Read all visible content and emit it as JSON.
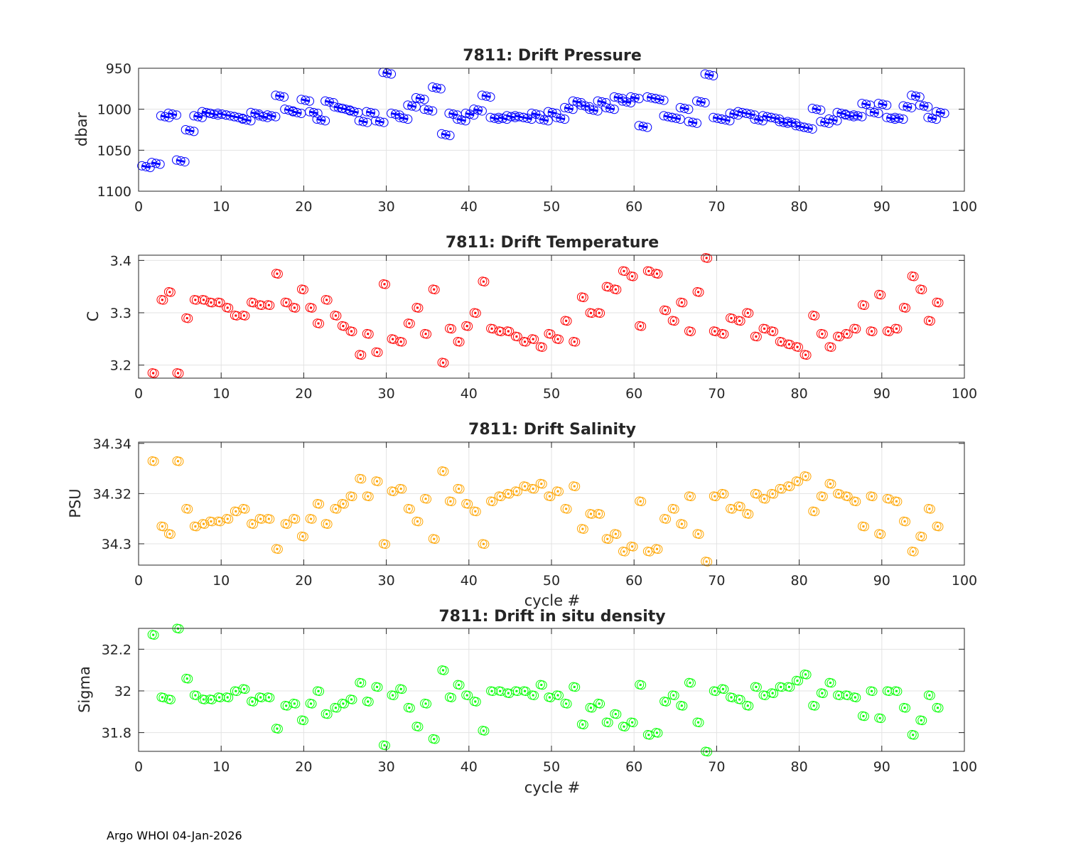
{
  "footer": "Argo WHOI 04-Jan-2026",
  "chart_data": [
    {
      "type": "scatter",
      "title": "7811: Drift Pressure",
      "xlabel": "",
      "ylabel": "dbar",
      "xlim": [
        0,
        100
      ],
      "ylim": [
        950,
        1100
      ],
      "y_reversed": true,
      "xticks": [
        0,
        10,
        20,
        30,
        40,
        50,
        60,
        70,
        80,
        90,
        100
      ],
      "yticks": [
        950,
        1000,
        1050,
        1100
      ],
      "grid": true,
      "color": "#0000ff",
      "marker": "circle",
      "pattern": [
        0.2,
        1.2,
        2.2
      ],
      "x": [
        0.3,
        1.5,
        2.6,
        3.5,
        4.5,
        5.6,
        6.6,
        7.6,
        8.5,
        9.5,
        10.5,
        11.5,
        12.5,
        13.5,
        14.5,
        15.5,
        16.5,
        17.6,
        18.6,
        19.6,
        20.6,
        21.5,
        22.5,
        23.6,
        24.5,
        25.5,
        26.6,
        27.5,
        28.6,
        29.5,
        30.5,
        31.5,
        32.5,
        33.5,
        34.5,
        35.5,
        36.6,
        37.5,
        38.5,
        39.5,
        40.5,
        41.5,
        42.5,
        43.5,
        44.5,
        45.5,
        46.5,
        47.5,
        48.5,
        49.5,
        50.5,
        51.5,
        52.5,
        53.5,
        54.5,
        55.5,
        56.5,
        57.5,
        58.5,
        59.5,
        60.5,
        61.5,
        62.5,
        63.5,
        64.5,
        65.5,
        66.5,
        67.5,
        68.5,
        69.5,
        70.5,
        71.5,
        72.5,
        73.5,
        74.5,
        75.5,
        76.5,
        77.5,
        78.5,
        79.5,
        80.5,
        81.5,
        82.5,
        83.5,
        84.5,
        85.5,
        86.5,
        87.5,
        88.5,
        89.5,
        90.5,
        91.5,
        92.5,
        93.5,
        94.5,
        95.5,
        96.5
      ],
      "y": [
        1069,
        1065,
        1008,
        1005,
        1062,
        1025,
        1008,
        1003,
        1005,
        1005,
        1007,
        1009,
        1012,
        1004,
        1008,
        1007,
        983,
        1000,
        1003,
        988,
        1003,
        1012,
        990,
        997,
        999,
        1002,
        1014,
        1003,
        1014,
        955,
        1005,
        1010,
        995,
        986,
        1000,
        973,
        1030,
        1005,
        1012,
        1005,
        1000,
        983,
        1010,
        1010,
        1008,
        1008,
        1010,
        1005,
        1012,
        1003,
        1010,
        998,
        990,
        995,
        1000,
        990,
        998,
        985,
        990,
        985,
        1020,
        985,
        987,
        1008,
        1010,
        998,
        1015,
        990,
        957,
        1010,
        1012,
        1005,
        1003,
        1005,
        1012,
        1008,
        1010,
        1015,
        1015,
        1020,
        1022,
        999,
        1015,
        1012,
        1004,
        1007,
        1007,
        993,
        1003,
        993,
        1010,
        1010,
        996,
        983,
        995,
        1010,
        1003
      ],
      "markers": []
    },
    {
      "type": "scatter",
      "title": "7811: Drift Temperature",
      "xlabel": "",
      "ylabel": "C",
      "xlim": [
        0,
        100
      ],
      "ylim": [
        3.175,
        3.41
      ],
      "y_reversed": false,
      "xticks": [
        0,
        10,
        20,
        30,
        40,
        50,
        60,
        70,
        80,
        90,
        100
      ],
      "yticks": [
        3.2,
        3.3,
        3.4
      ],
      "ytick_labels": [
        "3.2",
        "3.3",
        "3.4"
      ],
      "grid": true,
      "color": "#ff0000",
      "marker": "circle",
      "pattern": [
        0.3,
        0.8
      ],
      "x": [
        1.5,
        2.6,
        3.5,
        4.5,
        5.6,
        6.6,
        7.6,
        8.5,
        9.5,
        10.5,
        11.5,
        12.5,
        13.5,
        14.5,
        15.5,
        16.5,
        17.6,
        18.6,
        19.6,
        20.6,
        21.5,
        22.5,
        23.6,
        24.5,
        25.5,
        26.6,
        27.5,
        28.6,
        29.5,
        30.5,
        31.5,
        32.5,
        33.5,
        34.5,
        35.5,
        36.6,
        37.5,
        38.5,
        39.5,
        40.5,
        41.5,
        42.5,
        43.5,
        44.5,
        45.5,
        46.5,
        47.5,
        48.5,
        49.5,
        50.5,
        51.5,
        52.5,
        53.5,
        54.5,
        55.5,
        56.5,
        57.5,
        58.5,
        59.5,
        60.5,
        61.5,
        62.5,
        63.5,
        64.5,
        65.5,
        66.5,
        67.5,
        68.5,
        69.5,
        70.5,
        71.5,
        72.5,
        73.5,
        74.5,
        75.5,
        76.5,
        77.5,
        78.5,
        79.5,
        80.5,
        81.5,
        82.5,
        83.5,
        84.5,
        85.5,
        86.5,
        87.5,
        88.5,
        89.5,
        90.5,
        91.5,
        92.5,
        93.5,
        94.5,
        95.5,
        96.5
      ],
      "y": [
        3.185,
        3.325,
        3.34,
        3.185,
        3.29,
        3.325,
        3.325,
        3.32,
        3.32,
        3.31,
        3.295,
        3.295,
        3.32,
        3.315,
        3.315,
        3.375,
        3.32,
        3.31,
        3.345,
        3.31,
        3.28,
        3.325,
        3.295,
        3.275,
        3.265,
        3.22,
        3.26,
        3.225,
        3.355,
        3.25,
        3.245,
        3.28,
        3.31,
        3.26,
        3.345,
        3.205,
        3.27,
        3.245,
        3.275,
        3.3,
        3.36,
        3.27,
        3.265,
        3.265,
        3.255,
        3.245,
        3.25,
        3.235,
        3.26,
        3.25,
        3.285,
        3.245,
        3.33,
        3.3,
        3.3,
        3.35,
        3.345,
        3.38,
        3.37,
        3.275,
        3.38,
        3.375,
        3.305,
        3.285,
        3.32,
        3.265,
        3.34,
        3.405,
        3.265,
        3.26,
        3.29,
        3.285,
        3.3,
        3.255,
        3.27,
        3.265,
        3.245,
        3.24,
        3.235,
        3.22,
        3.295,
        3.26,
        3.235,
        3.255,
        3.26,
        3.27,
        3.315,
        3.265,
        3.335,
        3.265,
        3.27,
        3.31,
        3.37,
        3.345,
        3.285,
        3.32
      ],
      "markers": []
    },
    {
      "type": "scatter",
      "title": "7811: Drift Salinity",
      "xlabel": "cycle #",
      "ylabel": "PSU",
      "xlim": [
        0,
        100
      ],
      "ylim": [
        34.2915,
        34.3405
      ],
      "y_reversed": false,
      "xticks": [
        0,
        10,
        20,
        30,
        40,
        50,
        60,
        70,
        80,
        90,
        100
      ],
      "yticks": [
        34.3,
        34.32,
        34.34
      ],
      "ytick_labels": [
        "34.3",
        "34.32",
        "34.34"
      ],
      "grid": true,
      "color": "#ffa500",
      "marker": "circle",
      "pattern": [
        0.3,
        0.8
      ],
      "x": [
        1.5,
        2.6,
        3.5,
        4.5,
        5.6,
        6.6,
        7.6,
        8.5,
        9.5,
        10.5,
        11.5,
        12.5,
        13.5,
        14.5,
        15.5,
        16.5,
        17.6,
        18.6,
        19.6,
        20.6,
        21.5,
        22.5,
        23.6,
        24.5,
        25.5,
        26.6,
        27.5,
        28.6,
        29.5,
        30.5,
        31.5,
        32.5,
        33.5,
        34.5,
        35.5,
        36.6,
        37.5,
        38.5,
        39.5,
        40.5,
        41.5,
        42.5,
        43.5,
        44.5,
        45.5,
        46.5,
        47.5,
        48.5,
        49.5,
        50.5,
        51.5,
        52.5,
        53.5,
        54.5,
        55.5,
        56.5,
        57.5,
        58.5,
        59.5,
        60.5,
        61.5,
        62.5,
        63.5,
        64.5,
        65.5,
        66.5,
        67.5,
        68.5,
        69.5,
        70.5,
        71.5,
        72.5,
        73.5,
        74.5,
        75.5,
        76.5,
        77.5,
        78.5,
        79.5,
        80.5,
        81.5,
        82.5,
        83.5,
        84.5,
        85.5,
        86.5,
        87.5,
        88.5,
        89.5,
        90.5,
        91.5,
        92.5,
        93.5,
        94.5,
        95.5,
        96.5
      ],
      "y": [
        34.333,
        34.307,
        34.304,
        34.333,
        34.314,
        34.307,
        34.308,
        34.309,
        34.309,
        34.31,
        34.313,
        34.314,
        34.308,
        34.31,
        34.31,
        34.298,
        34.308,
        34.31,
        34.303,
        34.31,
        34.316,
        34.308,
        34.314,
        34.316,
        34.319,
        34.326,
        34.319,
        34.325,
        34.3,
        34.321,
        34.322,
        34.314,
        34.309,
        34.318,
        34.302,
        34.329,
        34.317,
        34.322,
        34.316,
        34.313,
        34.3,
        34.317,
        34.319,
        34.32,
        34.321,
        34.323,
        34.322,
        34.324,
        34.319,
        34.321,
        34.314,
        34.323,
        34.306,
        34.312,
        34.312,
        34.302,
        34.304,
        34.297,
        34.299,
        34.317,
        34.297,
        34.298,
        34.31,
        34.314,
        34.308,
        34.319,
        34.304,
        34.293,
        34.319,
        34.32,
        34.314,
        34.315,
        34.312,
        34.32,
        34.318,
        34.32,
        34.322,
        34.323,
        34.325,
        34.327,
        34.313,
        34.319,
        34.324,
        34.32,
        34.319,
        34.317,
        34.307,
        34.319,
        34.304,
        34.318,
        34.317,
        34.309,
        34.297,
        34.303,
        34.314,
        34.307
      ],
      "markers": []
    },
    {
      "type": "scatter",
      "title": "7811: Drift in situ density",
      "xlabel": "cycle #",
      "ylabel": "Sigma",
      "xlim": [
        0,
        100
      ],
      "ylim": [
        31.71,
        32.3
      ],
      "y_reversed": false,
      "xticks": [
        0,
        10,
        20,
        30,
        40,
        50,
        60,
        70,
        80,
        90,
        100
      ],
      "yticks": [
        31.8,
        32.0,
        32.2
      ],
      "ytick_labels": [
        "31.8",
        "32",
        "32.2"
      ],
      "grid": true,
      "color": "#00ff00",
      "marker": "circle",
      "pattern": [
        0.3,
        0.8
      ],
      "x": [
        1.5,
        2.6,
        3.5,
        4.5,
        5.6,
        6.6,
        7.6,
        8.5,
        9.5,
        10.5,
        11.5,
        12.5,
        13.5,
        14.5,
        15.5,
        16.5,
        17.6,
        18.6,
        19.6,
        20.6,
        21.5,
        22.5,
        23.6,
        24.5,
        25.5,
        26.6,
        27.5,
        28.6,
        29.5,
        30.5,
        31.5,
        32.5,
        33.5,
        34.5,
        35.5,
        36.6,
        37.5,
        38.5,
        39.5,
        40.5,
        41.5,
        42.5,
        43.5,
        44.5,
        45.5,
        46.5,
        47.5,
        48.5,
        49.5,
        50.5,
        51.5,
        52.5,
        53.5,
        54.5,
        55.5,
        56.5,
        57.5,
        58.5,
        59.5,
        60.5,
        61.5,
        62.5,
        63.5,
        64.5,
        65.5,
        66.5,
        67.5,
        68.5,
        69.5,
        70.5,
        71.5,
        72.5,
        73.5,
        74.5,
        75.5,
        76.5,
        77.5,
        78.5,
        79.5,
        80.5,
        81.5,
        82.5,
        83.5,
        84.5,
        85.5,
        86.5,
        87.5,
        88.5,
        89.5,
        90.5,
        91.5,
        92.5,
        93.5,
        94.5,
        95.5,
        96.5
      ],
      "y": [
        32.27,
        31.97,
        31.96,
        32.3,
        32.06,
        31.98,
        31.96,
        31.96,
        31.97,
        31.97,
        32.0,
        32.01,
        31.95,
        31.97,
        31.97,
        31.82,
        31.93,
        31.94,
        31.86,
        31.94,
        32.0,
        31.89,
        31.92,
        31.94,
        31.96,
        32.04,
        31.95,
        32.02,
        31.74,
        31.98,
        32.01,
        31.92,
        31.83,
        31.94,
        31.77,
        32.1,
        31.97,
        32.03,
        31.98,
        31.95,
        31.81,
        32.0,
        32.0,
        31.99,
        32.0,
        32.0,
        31.98,
        32.03,
        31.97,
        31.98,
        31.94,
        32.02,
        31.84,
        31.92,
        31.94,
        31.85,
        31.89,
        31.83,
        31.85,
        32.03,
        31.79,
        31.8,
        31.95,
        31.98,
        31.93,
        32.04,
        31.85,
        31.71,
        32.0,
        32.01,
        31.97,
        31.96,
        31.93,
        32.02,
        31.98,
        31.99,
        32.02,
        32.02,
        32.05,
        32.08,
        31.93,
        31.99,
        32.04,
        31.98,
        31.98,
        31.97,
        31.88,
        32.0,
        31.87,
        32.0,
        32.0,
        31.92,
        31.79,
        31.86,
        31.98,
        31.92
      ],
      "markers": []
    }
  ]
}
